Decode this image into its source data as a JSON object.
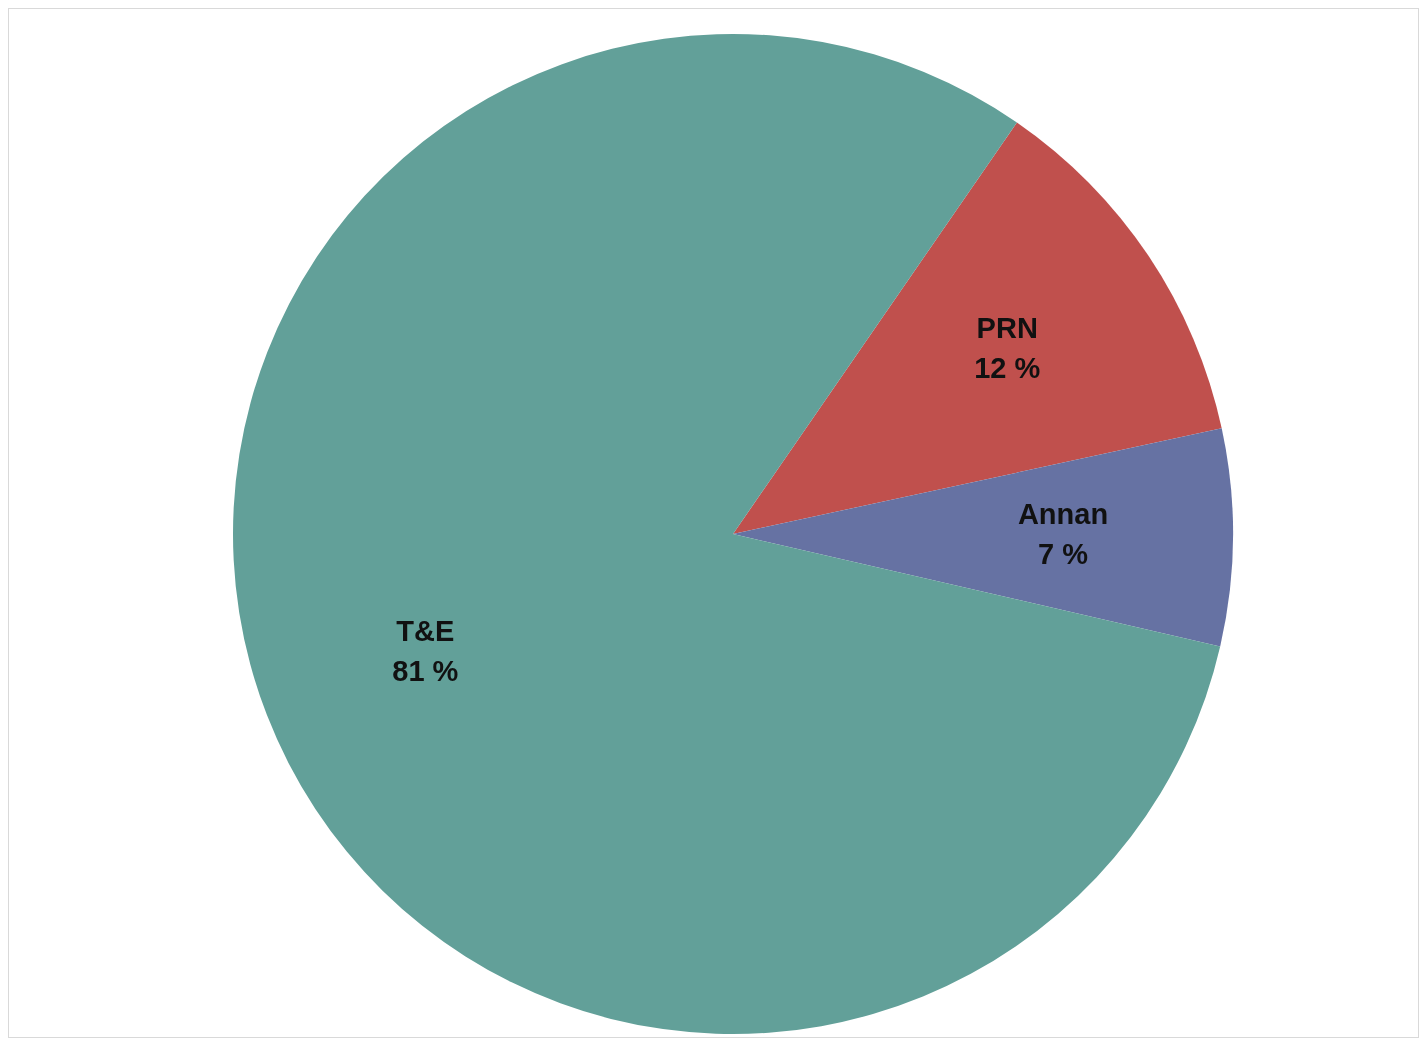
{
  "chart_data": {
    "type": "pie",
    "categories": [
      "PRN",
      "Annan",
      "T&E"
    ],
    "values": [
      12,
      7,
      81
    ],
    "colors": [
      "#c0504d",
      "#6672a3",
      "#62a099"
    ],
    "value_labels": [
      "12 %",
      "7 %",
      "81 %"
    ]
  }
}
